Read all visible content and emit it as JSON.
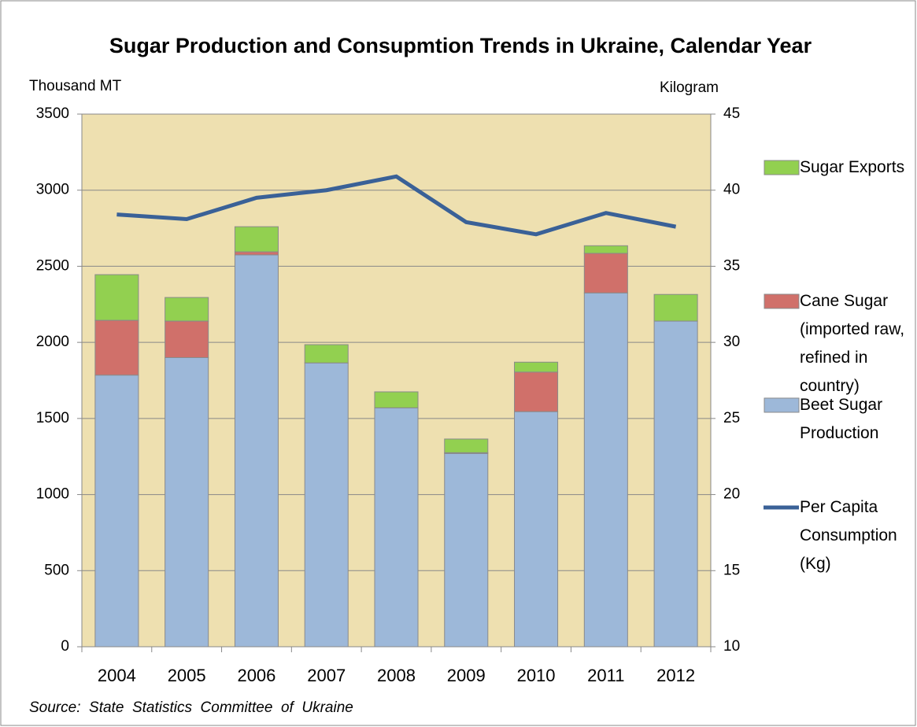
{
  "chart_data": {
    "type": "bar",
    "title": "Sugar Production and Consupmtion Trends in Ukraine, Calendar Year",
    "y_label": "Thousand MT",
    "y2_label": "Kilogram",
    "source": "Source:  State  Statistics  Committee  of  Ukraine",
    "categories": [
      "2004",
      "2005",
      "2006",
      "2007",
      "2008",
      "2009",
      "2010",
      "2011",
      "2012"
    ],
    "series": [
      {
        "name": "Sugar Exports",
        "type": "bar",
        "color": "#92d050",
        "values": [
          300,
          155,
          165,
          120,
          105,
          90,
          65,
          50,
          175
        ]
      },
      {
        "name": "Cane Sugar (imported raw, refined in country)",
        "type": "bar",
        "color": "#d0706a",
        "values": [
          360,
          240,
          20,
          0,
          0,
          5,
          260,
          260,
          0
        ]
      },
      {
        "name": "Beet Sugar Production",
        "type": "bar",
        "color": "#9db8d9",
        "values": [
          1785,
          1900,
          2575,
          1865,
          1570,
          1270,
          1545,
          2325,
          2140
        ]
      },
      {
        "name": "Per Capita Consumption (Kg)",
        "type": "line",
        "axis": "y2",
        "color": "#3a6197",
        "values": [
          38.4,
          38.1,
          39.5,
          40.0,
          40.9,
          37.9,
          37.1,
          38.5,
          37.6
        ]
      }
    ],
    "ylim": [
      0,
      3500
    ],
    "yticks": [
      0,
      500,
      1000,
      1500,
      2000,
      2500,
      3000,
      3500
    ],
    "y2lim": [
      10,
      45
    ],
    "y2ticks": [
      10,
      15,
      20,
      25,
      30,
      35,
      40,
      45
    ],
    "grid": true,
    "plot_background": "#eee0b0",
    "legend": "right"
  }
}
